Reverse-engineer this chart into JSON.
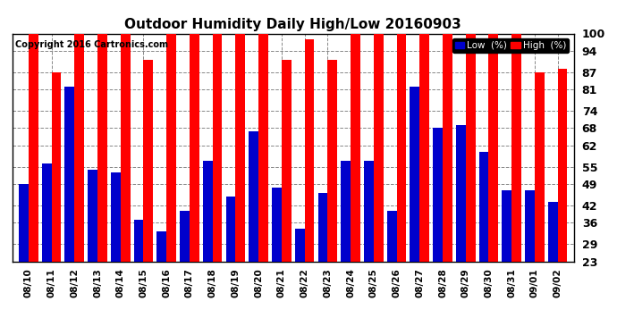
{
  "title": "Outdoor Humidity Daily High/Low 20160903",
  "copyright": "Copyright 2016 Cartronics.com",
  "dates": [
    "08/10",
    "08/11",
    "08/12",
    "08/13",
    "08/14",
    "08/15",
    "08/16",
    "08/17",
    "08/18",
    "08/19",
    "08/20",
    "08/21",
    "08/22",
    "08/23",
    "08/24",
    "08/25",
    "08/26",
    "08/27",
    "08/28",
    "08/29",
    "08/30",
    "08/31",
    "09/01",
    "09/02"
  ],
  "high": [
    100,
    87,
    100,
    100,
    100,
    91,
    100,
    100,
    100,
    100,
    100,
    91,
    98,
    91,
    100,
    100,
    100,
    100,
    100,
    100,
    100,
    100,
    87,
    88
  ],
  "low": [
    49,
    56,
    82,
    54,
    53,
    37,
    33,
    40,
    57,
    45,
    67,
    48,
    34,
    46,
    57,
    57,
    40,
    82,
    68,
    69,
    60,
    47,
    47,
    43
  ],
  "bar_color_high": "#ff0000",
  "bar_color_low": "#0000cc",
  "bg_color": "#ffffff",
  "plot_bg_color": "#ffffff",
  "yticks": [
    23,
    29,
    36,
    42,
    49,
    55,
    62,
    68,
    74,
    81,
    87,
    94,
    100
  ],
  "ymin": 23,
  "ymax": 100,
  "legend_low_color": "#0000cc",
  "legend_high_color": "#ff0000",
  "legend_low_label": "Low  (%)",
  "legend_high_label": "High  (%)"
}
